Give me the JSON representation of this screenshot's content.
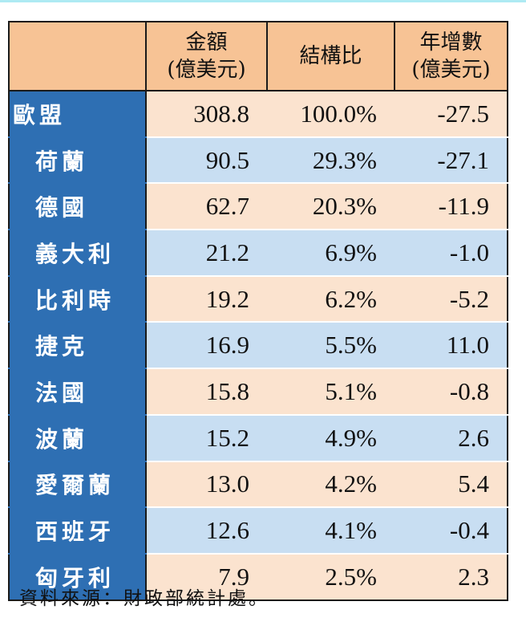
{
  "header": {
    "col1_line1": "金額",
    "col1_line2": "(億美元)",
    "col2": "結構比",
    "col3_line1": "年增數",
    "col3_line2": "(億美元)"
  },
  "rows": [
    {
      "name": "歐盟",
      "amount": "308.8",
      "share": "100.0%",
      "change": "-27.5"
    },
    {
      "name": "荷蘭",
      "amount": "90.5",
      "share": "29.3%",
      "change": "-27.1"
    },
    {
      "name": "德國",
      "amount": "62.7",
      "share": "20.3%",
      "change": "-11.9"
    },
    {
      "name": "義大利",
      "amount": "21.2",
      "share": "6.9%",
      "change": "-1.0"
    },
    {
      "name": "比利時",
      "amount": "19.2",
      "share": "6.2%",
      "change": "-5.2"
    },
    {
      "name": "捷克",
      "amount": "16.9",
      "share": "5.5%",
      "change": "11.0"
    },
    {
      "name": "法國",
      "amount": "15.8",
      "share": "5.1%",
      "change": "-0.8"
    },
    {
      "name": "波蘭",
      "amount": "15.2",
      "share": "4.9%",
      "change": "2.6"
    },
    {
      "name": "愛爾蘭",
      "amount": "13.0",
      "share": "4.2%",
      "change": "5.4"
    },
    {
      "name": "西班牙",
      "amount": "12.6",
      "share": "4.1%",
      "change": "-0.4"
    },
    {
      "name": "匈牙利",
      "amount": "7.9",
      "share": "2.5%",
      "change": "2.3"
    }
  ],
  "source": "資料來源：財政部統計處。",
  "colors": {
    "header_bg": "#f7c395",
    "name_bg": "#2e6fb3",
    "row_orange": "#fbe3cf",
    "row_blue": "#c8def2"
  }
}
